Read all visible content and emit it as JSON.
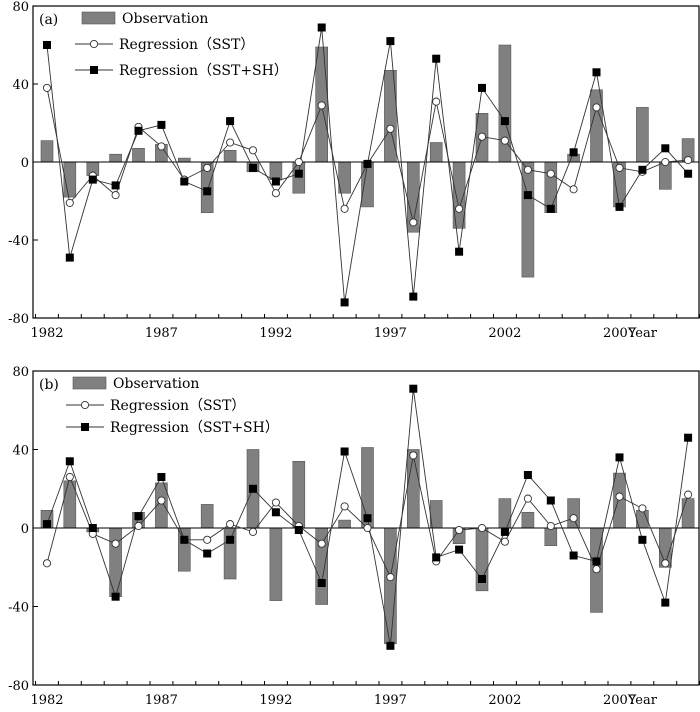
{
  "chart_data": [
    {
      "type": "bar+line",
      "panel_label": "(a)",
      "legend_position": "top-left",
      "legend": {
        "observation": "Observation",
        "sst": "Regression（SST）",
        "sst_sh": "Regression（SST+SH）"
      },
      "xlabel": "Year",
      "ylim": [
        -80,
        80
      ],
      "yticks": [
        -80,
        -40,
        0,
        40,
        80
      ],
      "xtick_labels": [
        "1982",
        "1987",
        "1992",
        "1997",
        "2002",
        "2007"
      ],
      "years": [
        1982,
        1983,
        1984,
        1985,
        1986,
        1987,
        1988,
        1989,
        1990,
        1991,
        1992,
        1993,
        1994,
        1995,
        1996,
        1997,
        1998,
        1999,
        2000,
        2001,
        2002,
        2003,
        2004,
        2005,
        2006,
        2007,
        2008,
        2009,
        2010
      ],
      "series": [
        {
          "name": "Observation",
          "kind": "bar",
          "values": [
            11,
            -18,
            -7,
            4,
            7,
            9,
            2,
            -26,
            6,
            -5,
            -9,
            -16,
            59,
            -16,
            -23,
            47,
            -36,
            10,
            -34,
            25,
            60,
            -59,
            -26,
            4,
            37,
            -23,
            28,
            -14,
            12
          ]
        },
        {
          "name": "Regression (SST)",
          "kind": "line-open-circle",
          "values": [
            38,
            -21,
            -7,
            -17,
            18,
            8,
            -9,
            -3,
            10,
            6,
            -16,
            0,
            29,
            -24,
            -1,
            17,
            -31,
            31,
            -24,
            13,
            11,
            -4,
            -6,
            -14,
            28,
            -3,
            -5,
            0,
            1
          ]
        },
        {
          "name": "Regression (SST+SH)",
          "kind": "line-filled-square",
          "values": [
            60,
            -49,
            -9,
            -12,
            16,
            19,
            -10,
            -15,
            21,
            -3,
            -10,
            -6,
            69,
            -72,
            -1,
            62,
            -69,
            53,
            -46,
            38,
            21,
            -17,
            -24,
            5,
            46,
            -23,
            -4,
            7,
            -6
          ]
        }
      ]
    },
    {
      "type": "bar+line",
      "panel_label": "(b)",
      "legend_position": "top-left",
      "legend": {
        "observation": "Observation",
        "sst": "Regression（SST）",
        "sst_sh": "Regression（SST+SH）"
      },
      "xlabel": "Year",
      "ylim": [
        -80,
        80
      ],
      "yticks": [
        -80,
        -40,
        0,
        40,
        80
      ],
      "xtick_labels": [
        "1982",
        "1987",
        "1992",
        "1997",
        "2002",
        "2007"
      ],
      "years": [
        1982,
        1983,
        1984,
        1985,
        1986,
        1987,
        1988,
        1989,
        1990,
        1991,
        1992,
        1993,
        1994,
        1995,
        1996,
        1997,
        1998,
        1999,
        2000,
        2001,
        2002,
        2003,
        2004,
        2005,
        2006,
        2007,
        2008,
        2009,
        2010
      ],
      "series": [
        {
          "name": "Observation",
          "kind": "bar",
          "values": [
            9,
            24,
            -2,
            -35,
            8,
            23,
            -22,
            12,
            -26,
            40,
            -37,
            34,
            -39,
            4,
            41,
            -59,
            40,
            14,
            -8,
            -32,
            15,
            8,
            -9,
            15,
            -43,
            28,
            9,
            -20,
            15
          ]
        },
        {
          "name": "Regression (SST)",
          "kind": "line-open-circle",
          "values": [
            -18,
            26,
            -3,
            -8,
            1,
            14,
            -6,
            -6,
            2,
            -2,
            13,
            1,
            -8,
            11,
            0,
            -25,
            37,
            -17,
            -1,
            0,
            -7,
            15,
            1,
            5,
            -21,
            16,
            10,
            -18,
            17
          ]
        },
        {
          "name": "Regression (SST+SH)",
          "kind": "line-filled-square",
          "values": [
            2,
            34,
            0,
            -35,
            6,
            26,
            -6,
            -13,
            -6,
            20,
            8,
            -1,
            -28,
            39,
            5,
            -60,
            71,
            -15,
            -11,
            -26,
            -2,
            27,
            14,
            -14,
            -17,
            36,
            -6,
            -38,
            46
          ]
        }
      ]
    }
  ]
}
